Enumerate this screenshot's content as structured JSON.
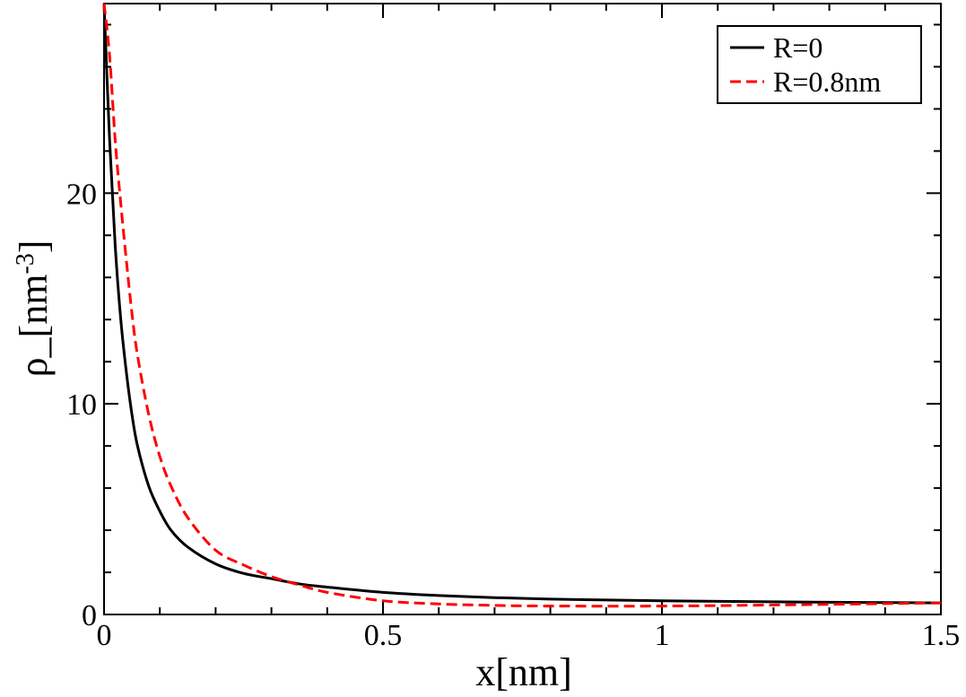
{
  "chart_data": {
    "type": "line",
    "xlabel": "x[nm]",
    "ylabel": {
      "main": "ρ_[nm",
      "sup": "-3",
      "close": "]"
    },
    "xlim": [
      0,
      1.5
    ],
    "ylim": [
      0,
      29
    ],
    "x_ticks": [
      0,
      0.5,
      1,
      1.5
    ],
    "x_tick_labels": [
      "0",
      "0.5",
      "1",
      "1.5"
    ],
    "y_ticks": [
      0,
      10,
      20
    ],
    "y_tick_labels": [
      "0",
      "10",
      "20"
    ],
    "grid": false,
    "legend_position": "top-right",
    "series": [
      {
        "name": "R=0",
        "color": "#000000",
        "dash": "solid",
        "x": [
          0.0,
          0.01,
          0.02,
          0.03,
          0.04,
          0.05,
          0.06,
          0.08,
          0.1,
          0.12,
          0.15,
          0.2,
          0.25,
          0.3,
          0.35,
          0.4,
          0.5,
          0.6,
          0.7,
          0.8,
          1.0,
          1.2,
          1.5
        ],
        "y": [
          29.0,
          22.5,
          17.5,
          14.0,
          11.5,
          9.5,
          8.0,
          6.1,
          4.9,
          4.0,
          3.2,
          2.4,
          1.95,
          1.7,
          1.45,
          1.3,
          1.05,
          0.9,
          0.8,
          0.73,
          0.65,
          0.6,
          0.55
        ]
      },
      {
        "name": "R=0.8nm",
        "color": "#ff0000",
        "dash": "dashed",
        "x": [
          0.0,
          0.01,
          0.02,
          0.03,
          0.04,
          0.05,
          0.06,
          0.08,
          0.1,
          0.12,
          0.15,
          0.2,
          0.25,
          0.3,
          0.35,
          0.4,
          0.5,
          0.6,
          0.7,
          0.8,
          1.0,
          1.2,
          1.5
        ],
        "y": [
          29.0,
          26.5,
          22.5,
          19.5,
          16.8,
          14.3,
          12.3,
          9.5,
          7.5,
          6.1,
          4.6,
          3.05,
          2.35,
          1.8,
          1.4,
          1.05,
          0.65,
          0.5,
          0.43,
          0.4,
          0.4,
          0.45,
          0.55
        ]
      }
    ]
  }
}
